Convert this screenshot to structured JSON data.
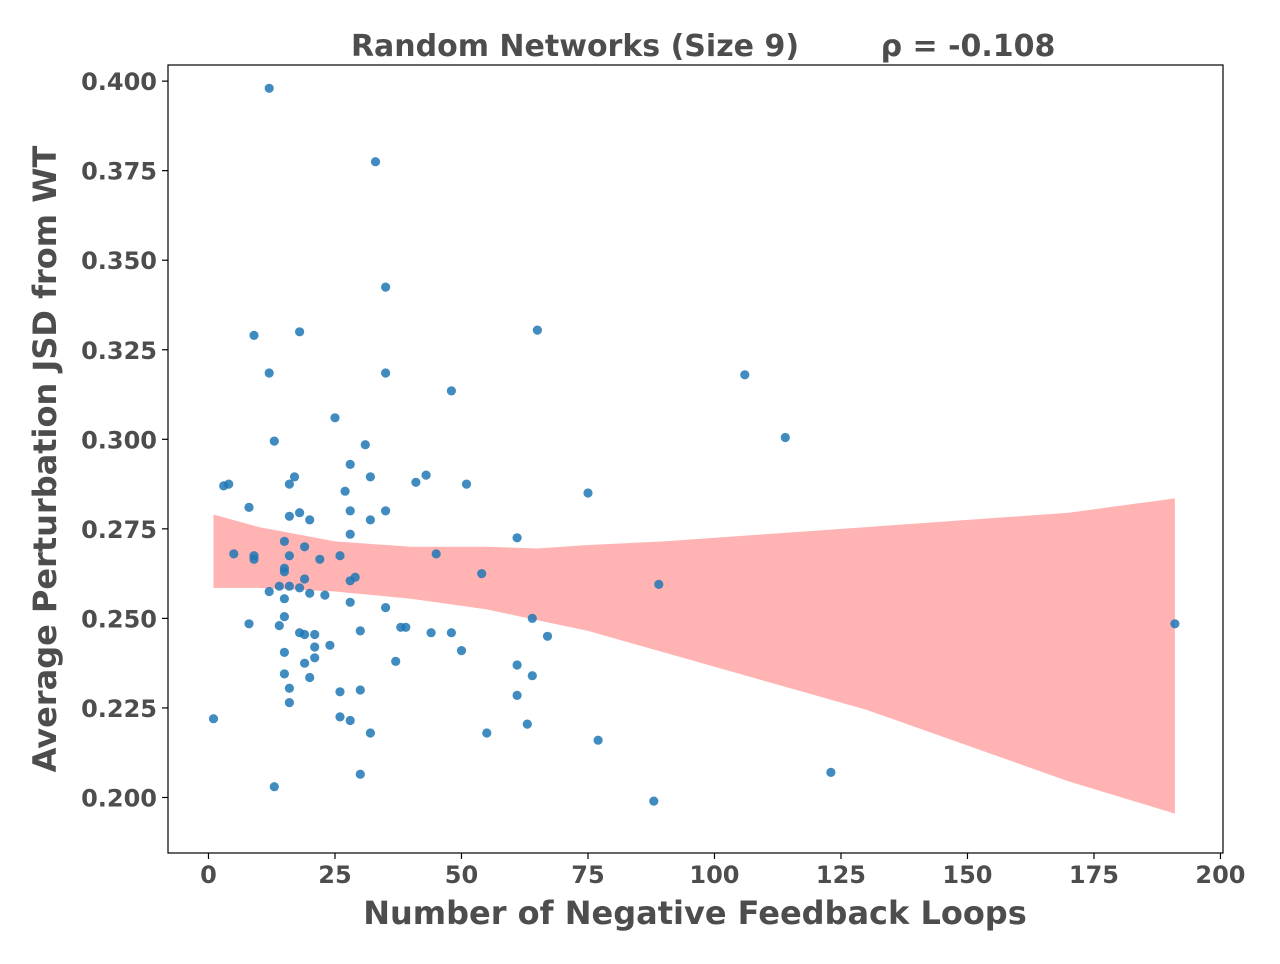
{
  "chart_data": {
    "type": "scatter",
    "title": "Random Networks (Size 9)",
    "annotation": "ρ = -0.108",
    "xlabel": "Number of Negative Feedback Loops",
    "ylabel": "Average Perturbation JSD from WT",
    "xlim": [
      -8,
      200.5
    ],
    "ylim": [
      0.1845,
      0.4045
    ],
    "xticks": [
      0,
      25,
      50,
      75,
      100,
      125,
      150,
      175,
      200
    ],
    "yticks": [
      0.2,
      0.225,
      0.25,
      0.275,
      0.3,
      0.325,
      0.35,
      0.375,
      0.4
    ],
    "xtick_labels": [
      "0",
      "25",
      "50",
      "75",
      "100",
      "125",
      "150",
      "175",
      "200"
    ],
    "ytick_labels": [
      "0.200",
      "0.225",
      "0.250",
      "0.275",
      "0.300",
      "0.325",
      "0.350",
      "0.375",
      "0.400"
    ],
    "grid": false,
    "point_color": "#1f77b4",
    "band_color": "#ff9999",
    "points": [
      [
        1,
        0.222
      ],
      [
        3,
        0.287
      ],
      [
        4,
        0.2875
      ],
      [
        5,
        0.268
      ],
      [
        8,
        0.281
      ],
      [
        8,
        0.2485
      ],
      [
        9,
        0.329
      ],
      [
        9,
        0.2675
      ],
      [
        9,
        0.2665
      ],
      [
        12,
        0.398
      ],
      [
        12,
        0.3185
      ],
      [
        12,
        0.2575
      ],
      [
        13,
        0.2995
      ],
      [
        13,
        0.203
      ],
      [
        14,
        0.248
      ],
      [
        14,
        0.259
      ],
      [
        15,
        0.2715
      ],
      [
        15,
        0.264
      ],
      [
        15,
        0.263
      ],
      [
        15,
        0.2555
      ],
      [
        15,
        0.2505
      ],
      [
        15,
        0.2405
      ],
      [
        15,
        0.2345
      ],
      [
        16,
        0.2875
      ],
      [
        16,
        0.2785
      ],
      [
        16,
        0.2675
      ],
      [
        16,
        0.259
      ],
      [
        16,
        0.2305
      ],
      [
        16,
        0.2265
      ],
      [
        17,
        0.2895
      ],
      [
        18,
        0.33
      ],
      [
        18,
        0.2795
      ],
      [
        18,
        0.2585
      ],
      [
        18,
        0.246
      ],
      [
        19,
        0.27
      ],
      [
        19,
        0.261
      ],
      [
        19,
        0.2455
      ],
      [
        19,
        0.2375
      ],
      [
        20,
        0.2775
      ],
      [
        20,
        0.257
      ],
      [
        20,
        0.2335
      ],
      [
        21,
        0.2455
      ],
      [
        21,
        0.242
      ],
      [
        21,
        0.239
      ],
      [
        22,
        0.2665
      ],
      [
        23,
        0.2565
      ],
      [
        24,
        0.2425
      ],
      [
        25,
        0.306
      ],
      [
        26,
        0.2675
      ],
      [
        26,
        0.2295
      ],
      [
        26,
        0.2225
      ],
      [
        27,
        0.2855
      ],
      [
        28,
        0.293
      ],
      [
        28,
        0.28
      ],
      [
        28,
        0.2735
      ],
      [
        28,
        0.2605
      ],
      [
        28,
        0.2545
      ],
      [
        28,
        0.2215
      ],
      [
        29,
        0.2615
      ],
      [
        30,
        0.2465
      ],
      [
        30,
        0.23
      ],
      [
        30,
        0.2065
      ],
      [
        31,
        0.2985
      ],
      [
        32,
        0.2895
      ],
      [
        32,
        0.2775
      ],
      [
        32,
        0.218
      ],
      [
        33,
        0.3775
      ],
      [
        35,
        0.3425
      ],
      [
        35,
        0.3185
      ],
      [
        35,
        0.28
      ],
      [
        35,
        0.253
      ],
      [
        37,
        0.238
      ],
      [
        38,
        0.2475
      ],
      [
        39,
        0.2475
      ],
      [
        41,
        0.288
      ],
      [
        43,
        0.29
      ],
      [
        44,
        0.246
      ],
      [
        45,
        0.268
      ],
      [
        48,
        0.3135
      ],
      [
        48,
        0.246
      ],
      [
        50,
        0.241
      ],
      [
        51,
        0.2875
      ],
      [
        54,
        0.2625
      ],
      [
        55,
        0.218
      ],
      [
        61,
        0.2725
      ],
      [
        61,
        0.237
      ],
      [
        61,
        0.2285
      ],
      [
        63,
        0.2205
      ],
      [
        64,
        0.25
      ],
      [
        64,
        0.234
      ],
      [
        65,
        0.3305
      ],
      [
        67,
        0.245
      ],
      [
        75,
        0.285
      ],
      [
        77,
        0.216
      ],
      [
        88,
        0.199
      ],
      [
        89,
        0.2595
      ],
      [
        106,
        0.318
      ],
      [
        114,
        0.3005
      ],
      [
        123,
        0.207
      ],
      [
        191,
        0.2485
      ]
    ],
    "confidence_band": {
      "x": [
        1,
        10,
        25,
        40,
        55,
        65,
        75,
        90,
        110,
        130,
        150,
        170,
        191
      ],
      "upper": [
        0.279,
        0.2755,
        0.2715,
        0.27,
        0.27,
        0.2695,
        0.2705,
        0.2715,
        0.2735,
        0.2755,
        0.2775,
        0.2795,
        0.2835
      ],
      "lower": [
        0.2585,
        0.2585,
        0.2575,
        0.2555,
        0.2525,
        0.2495,
        0.2465,
        0.2405,
        0.2325,
        0.2245,
        0.2145,
        0.2045,
        0.1955
      ]
    }
  }
}
